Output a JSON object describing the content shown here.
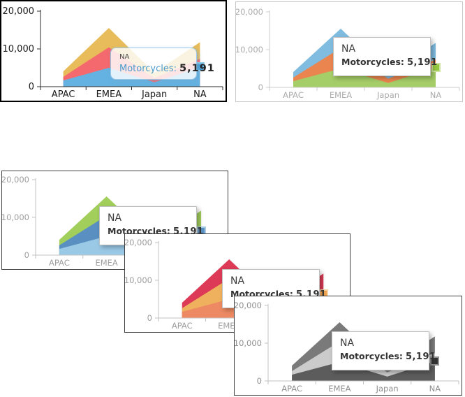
{
  "page": {
    "background": "#FFFFFF"
  },
  "chart_data": {
    "type": "area",
    "stacked": true,
    "title": "",
    "categories": [
      "APAC",
      "EMEA",
      "Japan",
      "NA"
    ],
    "series": [
      {
        "name": "Motorcycles",
        "values": [
          1650,
          5000,
          1150,
          5191
        ]
      },
      {
        "name": "",
        "values": [
          950,
          5450,
          1150,
          2200
        ]
      },
      {
        "name": "",
        "values": [
          1450,
          5100,
          1400,
          4400
        ]
      }
    ],
    "ylim": [
      0,
      20000
    ],
    "yticks": [
      {
        "value": 0,
        "label": "0"
      },
      {
        "value": 10000,
        "label": "10,000"
      },
      {
        "value": 20000,
        "label": "20,000"
      }
    ],
    "grid": false,
    "legend": "none",
    "tooltip": {
      "category": "NA",
      "series_label": "Motorcycles:",
      "value": "5,191"
    }
  },
  "charts": [
    {
      "name": "theme-1",
      "series_colors": [
        "#64B2E1",
        "#F4696E",
        "#E9BC5B"
      ],
      "bullet_fill": "#4A9FD6",
      "bullet_border": "#93CDEB",
      "axis_color": "#2B2B2B",
      "label_color": "#1A1A1A",
      "label_size": 13,
      "tooltip_variant": "rounded-blue",
      "tooltip_label_color": "#4B9BCD"
    },
    {
      "name": "theme-2",
      "series_colors": [
        "#A5CD68",
        "#EB8550",
        "#7FBCE0"
      ],
      "bullet_fill": "#95C841",
      "bullet_border": "#CDE4A0",
      "axis_color": "#CDCDCD",
      "label_color": "#ABABAB",
      "label_size": 11.5,
      "tooltip_variant": "plain",
      "tooltip_label_color": "#333333"
    },
    {
      "name": "theme-3",
      "series_colors": [
        "#9AC9E6",
        "#5A8FC2",
        "#A2CE5C"
      ],
      "bullet_fill": "#5A8FC2",
      "bullet_border": "#A9CBE5",
      "axis_color": "#C2C2C2",
      "label_color": "#9E9E9E",
      "label_size": 11.5,
      "tooltip_variant": "plain",
      "tooltip_label_color": "#333333"
    },
    {
      "name": "theme-4",
      "series_colors": [
        "#ED8A63",
        "#F0B15E",
        "#DC3A56"
      ],
      "bullet_fill": "#EFA451",
      "bullet_border": "#F6D2A0",
      "axis_color": "#C2C2C2",
      "label_color": "#9E9E9E",
      "label_size": 11.5,
      "tooltip_variant": "plain",
      "tooltip_label_color": "#333333"
    },
    {
      "name": "theme-5",
      "series_colors": [
        "#5C5C5C",
        "#CBCBCB",
        "#7A7A7A"
      ],
      "bullet_fill": "#333333",
      "bullet_border": "#909090",
      "axis_color": "#C2C2C2",
      "label_color": "#8F8F8F",
      "label_size": 11.5,
      "tooltip_variant": "plain",
      "tooltip_label_color": "#333333"
    }
  ]
}
